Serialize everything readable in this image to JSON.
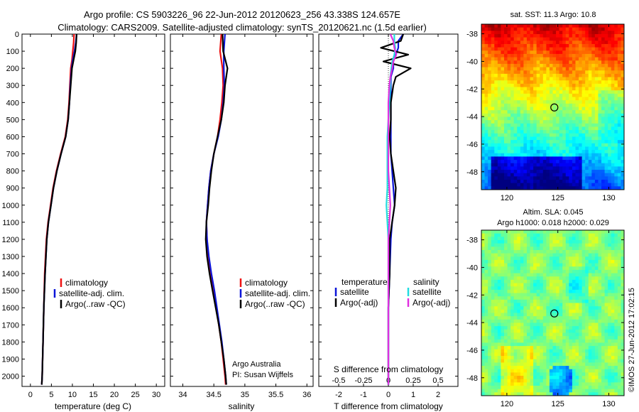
{
  "title_line1": "Argo profile: CS 5903226_96 22-Jun-2012 20120623_256 43.338S 124.657E",
  "title_line2": "Climatology: CARS2009. Satellite-adjusted climatology: synTS_20120621.nc (1.5d earlier)",
  "depth_ticks": [
    0,
    100,
    200,
    300,
    400,
    500,
    600,
    700,
    800,
    900,
    1000,
    1100,
    1200,
    1300,
    1400,
    1500,
    1600,
    1700,
    1800,
    1900,
    2000
  ],
  "colors": {
    "red": "#ee1111",
    "blue": "#0a14d8",
    "black": "#000000",
    "cyan": "#22dde0",
    "magenta": "#e030e0"
  },
  "chart_data": [
    {
      "type": "line",
      "id": "temperature",
      "xlabel": "temperature (deg C)",
      "xlim": [
        -2,
        32
      ],
      "ylim": [
        2060,
        0
      ],
      "xticks": [
        0,
        5,
        10,
        15,
        20,
        25,
        30
      ],
      "xtick_labels": [
        "0",
        "5",
        "10",
        "15",
        "20",
        "25",
        "30"
      ],
      "legend": [
        "climatology",
        "satellite-adj. clim.",
        "Argo(..raw -QC)"
      ],
      "depth": [
        0,
        50,
        100,
        150,
        200,
        300,
        400,
        500,
        600,
        700,
        800,
        900,
        1000,
        1100,
        1200,
        1300,
        1400,
        1600,
        1800,
        2000,
        2050
      ],
      "series": [
        {
          "name": "climatology",
          "color": "red",
          "values": [
            10.4,
            10.3,
            10.1,
            9.9,
            9.6,
            9.4,
            9.2,
            8.9,
            8.3,
            7.2,
            6.2,
            5.4,
            4.8,
            4.2,
            3.8,
            3.6,
            3.4,
            3.2,
            3.0,
            2.8,
            2.7
          ]
        },
        {
          "name": "satellite-adj. clim.",
          "color": "blue",
          "values": [
            11.0,
            10.8,
            10.5,
            10.1,
            9.8,
            9.5,
            9.3,
            9.0,
            8.4,
            7.3,
            6.3,
            5.5,
            4.9,
            4.3,
            3.9,
            3.7,
            3.5,
            3.2,
            3.0,
            2.8,
            2.7
          ]
        },
        {
          "name": "Argo(..raw -QC)",
          "color": "black",
          "values": [
            11.0,
            10.9,
            10.7,
            10.3,
            9.9,
            9.6,
            9.3,
            9.0,
            8.4,
            7.3,
            6.3,
            5.5,
            4.9,
            4.3,
            3.9,
            3.7,
            3.5,
            3.2,
            3.0,
            2.8,
            2.7
          ]
        }
      ]
    },
    {
      "type": "line",
      "id": "salinity",
      "xlabel": "salinity",
      "xlim": [
        33.8,
        36.1
      ],
      "ylim": [
        2060,
        0
      ],
      "xticks": [
        34,
        34.5,
        35,
        35.5,
        36
      ],
      "xtick_labels": [
        "34",
        "34.5",
        "35",
        "35.5",
        "36"
      ],
      "legend": [
        "climatology",
        "satellite-adj. clim.",
        "Argo(..raw -QC)"
      ],
      "annotation_line1": "Argo Australia",
      "annotation_line2": "PI: Susan Wijffels",
      "depth": [
        0,
        100,
        200,
        300,
        400,
        500,
        600,
        700,
        800,
        900,
        1000,
        1100,
        1200,
        1300,
        1400,
        1500,
        1600,
        1700,
        1800,
        1900,
        2000,
        2050
      ],
      "series": [
        {
          "name": "climatology",
          "color": "red",
          "values": [
            34.62,
            34.6,
            34.64,
            34.65,
            34.63,
            34.6,
            34.56,
            34.5,
            34.45,
            34.42,
            34.4,
            34.38,
            34.39,
            34.41,
            34.45,
            34.5,
            34.54,
            34.58,
            34.62,
            34.65,
            34.68,
            34.69
          ]
        },
        {
          "name": "satellite-adj. clim.",
          "color": "blue",
          "values": [
            34.68,
            34.66,
            34.66,
            34.67,
            34.65,
            34.62,
            34.57,
            34.5,
            34.45,
            34.42,
            34.4,
            34.38,
            34.39,
            34.42,
            34.46,
            34.51,
            34.55,
            34.59,
            34.63,
            34.66,
            34.69,
            34.7
          ]
        },
        {
          "name": "Argo(..raw -QC)",
          "color": "black",
          "values": [
            34.64,
            34.65,
            34.72,
            34.68,
            34.66,
            34.62,
            34.56,
            34.5,
            34.46,
            34.43,
            34.41,
            34.38,
            34.37,
            34.39,
            34.43,
            34.48,
            34.53,
            34.58,
            34.62,
            34.66,
            34.69,
            34.7
          ]
        }
      ]
    },
    {
      "type": "line",
      "id": "difference",
      "xlabel": "T difference from climatology",
      "xlabel2": "S difference from climatology",
      "xlim": [
        -2.8,
        2.8
      ],
      "ylim": [
        2060,
        0
      ],
      "xticks": [
        -2,
        -1,
        0,
        1,
        2
      ],
      "xtick_labels": [
        "-2",
        "-1",
        "0",
        "1",
        "2"
      ],
      "xticks2": [
        -0.5,
        -0.25,
        0,
        0.25,
        0.5
      ],
      "xtick2_labels": [
        "-0.5",
        "-0.25",
        "0",
        "0.25",
        "0.5"
      ],
      "legend_temperature_title": "temperature",
      "legend_salinity_title": "salinity",
      "legend_temperature": [
        "satellite",
        "Argo(-adj)"
      ],
      "legend_salinity": [
        "satellite",
        "Argo(-adj)"
      ],
      "depth": [
        0,
        40,
        80,
        120,
        160,
        200,
        250,
        300,
        400,
        500,
        600,
        700,
        800,
        900,
        1000,
        1100,
        1200,
        1400,
        1600,
        1800,
        2000,
        2050
      ],
      "series": [
        {
          "name": "T satellite",
          "color": "blue",
          "values": [
            0.6,
            0.4,
            0.4,
            0.3,
            0.2,
            0.2,
            0.1,
            0.1,
            0.1,
            0.1,
            0.1,
            0.1,
            0.15,
            0.2,
            0.25,
            0.15,
            0.1,
            0.05,
            0.0,
            0.0,
            0.0,
            0.0
          ]
        },
        {
          "name": "T Argo(-adj)",
          "color": "black",
          "values": [
            0.6,
            0.5,
            -0.3,
            0.8,
            -0.2,
            0.9,
            0.3,
            0.2,
            0.1,
            0.1,
            0.05,
            0.1,
            0.2,
            0.3,
            0.25,
            0.15,
            0.05,
            0.05,
            0.0,
            0.0,
            0.0,
            0.0
          ]
        },
        {
          "name": "S satellite",
          "color": "cyan",
          "values": [
            0.06,
            0.06,
            0.07,
            0.06,
            0.04,
            0.03,
            0.02,
            0.02,
            0.01,
            0.0,
            -0.01,
            -0.01,
            -0.01,
            -0.01,
            -0.02,
            -0.01,
            0.0,
            0.0,
            0.0,
            0.0,
            0.0,
            0.0
          ]
        },
        {
          "name": "S Argo(-adj)",
          "color": "magenta",
          "values": [
            0.02,
            0.05,
            0.06,
            0.08,
            0.05,
            0.04,
            0.02,
            0.01,
            0.0,
            0.0,
            0.0,
            0.0,
            0.0,
            0.01,
            0.02,
            0.01,
            0.0,
            0.0,
            0.0,
            0.0,
            0.0,
            0.0
          ]
        }
      ]
    },
    {
      "type": "heatmap",
      "id": "sst-map",
      "title": "sat. SST: 11.3 Argo: 10.8",
      "xlim": [
        117.5,
        131.5
      ],
      "ylim": [
        -49.3,
        -37.3
      ],
      "xticks": [
        120,
        125,
        130
      ],
      "xtick_labels": [
        "120",
        "125",
        "130"
      ],
      "yticks": [
        -38,
        -40,
        -42,
        -44,
        -46,
        -48
      ],
      "ytick_labels": [
        "-38",
        "-40",
        "-42",
        "-44",
        "-46",
        "-48"
      ],
      "marker": {
        "lon": 124.657,
        "lat": -43.338
      }
    },
    {
      "type": "heatmap",
      "id": "sla-map",
      "title": "Altim. SLA: 0.045",
      "subtitle": "Argo h1000: 0.018 h2000: 0.029",
      "xlim": [
        117.5,
        131.5
      ],
      "ylim": [
        -49.3,
        -37.3
      ],
      "xticks": [
        120,
        125,
        130
      ],
      "xtick_labels": [
        "120",
        "125",
        "130"
      ],
      "yticks": [
        -38,
        -40,
        -42,
        -44,
        -46,
        -48
      ],
      "ytick_labels": [
        "-38",
        "-40",
        "-42",
        "-44",
        "-46",
        "-48"
      ],
      "marker": {
        "lon": 124.657,
        "lat": -43.338
      }
    }
  ],
  "credit": "©IMOS 27-Jun-2012 17:02:15"
}
